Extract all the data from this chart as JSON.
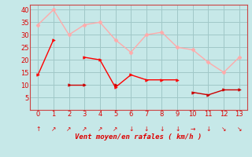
{
  "x": [
    0,
    1,
    2,
    3,
    4,
    5,
    6,
    7,
    8,
    9,
    10,
    11,
    12,
    13
  ],
  "line1_y": [
    14,
    28,
    null,
    21,
    20,
    9,
    14,
    12,
    12,
    12,
    null,
    null,
    null,
    null
  ],
  "line2_y": [
    null,
    null,
    10,
    10,
    null,
    10,
    null,
    null,
    null,
    null,
    7,
    6,
    8,
    8
  ],
  "line3_y": [
    34,
    40,
    30,
    34,
    35,
    28,
    23,
    30,
    31,
    25,
    24,
    19,
    15,
    21
  ],
  "bg_color": "#c6e8e8",
  "grid_color": "#a0c8c8",
  "line1_color": "#ff0000",
  "line2_color": "#cc0000",
  "line3_color": "#ffaaaa",
  "xlabel": "Vent moyen/en rafales ( km/h )",
  "ylim": [
    0,
    42
  ],
  "xlim": [
    -0.5,
    13.5
  ],
  "yticks": [
    5,
    10,
    15,
    20,
    25,
    30,
    35,
    40
  ],
  "xticks": [
    0,
    1,
    2,
    3,
    4,
    5,
    6,
    7,
    8,
    9,
    10,
    11,
    12,
    13
  ],
  "arrow_symbols": [
    "↑",
    "↗",
    "↗",
    "↗",
    "↗",
    "↗",
    "↓",
    "↓",
    "↓",
    "↓",
    "→",
    "↓",
    "↘",
    "↘"
  ]
}
